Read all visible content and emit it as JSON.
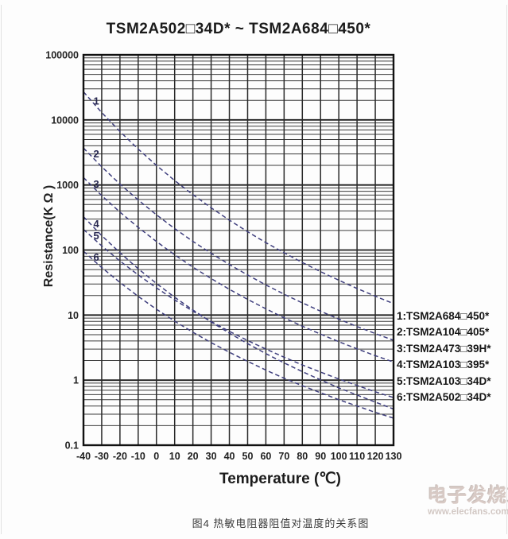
{
  "title": "TSM2A502□34D* ~ TSM2A684□450*",
  "caption": "图4  热敏电阻器阻值对温度的关系图",
  "watermark": {
    "logo": "电子发烧友",
    "url": "www.elecfans.com"
  },
  "legend": {
    "entries": [
      "1:TSM2A684□450*",
      "2:TSM2A104□405*",
      "3:TSM2A473□39H*",
      "4:TSM2A103□395*",
      "5:TSM2A103□34D*",
      "6:TSM2A502□34D*"
    ]
  },
  "colors": {
    "curve": "#3e3e7d",
    "curve_label": "#26264f",
    "grid_major": "#1e1e1e",
    "grid_minor": "#3c3c3c",
    "grid_vertical": "#2a2a2a",
    "border": "#111111",
    "tick_text": "#222222",
    "background": "#fdfdfd"
  },
  "chart_data": {
    "type": "line",
    "title": "TSM2A502□34D* ~ TSM2A684□450*",
    "xlabel": "Temperature (℃)",
    "ylabel": "Resistance(K Ω )",
    "xlim": [
      -40,
      130
    ],
    "ylim": [
      0.1,
      100000
    ],
    "y_scale": "log",
    "grid": true,
    "legend_position": "right-outside",
    "x_ticks": [
      -40,
      -30,
      -20,
      -10,
      0,
      10,
      20,
      30,
      40,
      50,
      60,
      70,
      80,
      90,
      100,
      110,
      120,
      130
    ],
    "y_ticks": [
      "100000",
      "10000",
      "1000",
      "100",
      "10",
      "1",
      "0.1"
    ],
    "series": [
      {
        "label": "1",
        "name": "TSM2A684□450*",
        "label_anchor": [
          -33,
          19600
        ],
        "points": [
          [
            -40,
            27000
          ],
          [
            -30,
            13000
          ],
          [
            -20,
            6630
          ],
          [
            -10,
            3560
          ],
          [
            0,
            2000
          ],
          [
            10,
            1170
          ],
          [
            20,
            711
          ],
          [
            30,
            445
          ],
          [
            40,
            288
          ],
          [
            50,
            191
          ],
          [
            60,
            130
          ],
          [
            70,
            90.5
          ],
          [
            80,
            64.3
          ],
          [
            90,
            46.5
          ],
          [
            100,
            34.3
          ],
          [
            110,
            25.6
          ],
          [
            120,
            19.5
          ],
          [
            130,
            15
          ]
        ]
      },
      {
        "label": "2",
        "name": "TSM2A104□405*",
        "label_anchor": [
          -33,
          3000
        ],
        "points": [
          [
            -40,
            3700
          ],
          [
            -30,
            1910
          ],
          [
            -20,
            1030
          ],
          [
            -10,
            588
          ],
          [
            0,
            348
          ],
          [
            10,
            214
          ],
          [
            20,
            136
          ],
          [
            30,
            89.2
          ],
          [
            40,
            60
          ],
          [
            50,
            41.3
          ],
          [
            60,
            29.1
          ],
          [
            70,
            20.9
          ],
          [
            80,
            15.4
          ],
          [
            90,
            11.5
          ],
          [
            100,
            8.67
          ],
          [
            110,
            6.66
          ],
          [
            120,
            5.19
          ],
          [
            130,
            4.1
          ]
        ]
      },
      {
        "label": "3",
        "name": "TSM2A473□39H*",
        "label_anchor": [
          -33,
          1030
        ],
        "points": [
          [
            -40,
            1300
          ],
          [
            -30,
            688
          ],
          [
            -20,
            383
          ],
          [
            -10,
            223
          ],
          [
            0,
            135
          ],
          [
            10,
            84.5
          ],
          [
            20,
            54.6
          ],
          [
            30,
            36.4
          ],
          [
            40,
            24.9
          ],
          [
            50,
            17.4
          ],
          [
            60,
            12.5
          ],
          [
            70,
            9.08
          ],
          [
            80,
            6.75
          ],
          [
            90,
            5.09
          ],
          [
            100,
            3.9
          ],
          [
            110,
            3.03
          ],
          [
            120,
            2.38
          ],
          [
            130,
            1.9
          ]
        ]
      },
      {
        "label": "4",
        "name": "TSM2A103□395*",
        "label_anchor": [
          -33,
          253
        ],
        "points": [
          [
            -40,
            325
          ],
          [
            -30,
            167
          ],
          [
            -20,
            90.8
          ],
          [
            -10,
            51.6
          ],
          [
            0,
            30.6
          ],
          [
            10,
            18.8
          ],
          [
            20,
            12
          ],
          [
            30,
            7.84
          ],
          [
            40,
            5.28
          ],
          [
            50,
            3.63
          ],
          [
            60,
            2.56
          ],
          [
            70,
            1.84
          ],
          [
            80,
            1.35
          ],
          [
            90,
            1.01
          ],
          [
            100,
            0.76
          ],
          [
            110,
            0.59
          ],
          [
            120,
            0.46
          ],
          [
            130,
            0.36
          ]
        ]
      },
      {
        "label": "5",
        "name": "TSM2A103□34D*",
        "label_anchor": [
          -33,
          166
        ],
        "points": [
          [
            -40,
            207
          ],
          [
            -30,
            116
          ],
          [
            -20,
            67.9
          ],
          [
            -10,
            41.5
          ],
          [
            0,
            26.2
          ],
          [
            10,
            17.1
          ],
          [
            20,
            11.5
          ],
          [
            30,
            7.97
          ],
          [
            40,
            5.63
          ],
          [
            50,
            4.07
          ],
          [
            60,
            3
          ],
          [
            70,
            2.25
          ],
          [
            80,
            1.71
          ],
          [
            90,
            1.33
          ],
          [
            100,
            1.04
          ],
          [
            110,
            0.83
          ],
          [
            120,
            0.66
          ],
          [
            130,
            0.54
          ]
        ]
      },
      {
        "label": "6",
        "name": "TSM2A502□34D*",
        "label_anchor": [
          -33,
          78
        ],
        "points": [
          [
            -40,
            96
          ],
          [
            -30,
            53.9
          ],
          [
            -20,
            31.7
          ],
          [
            -10,
            19.4
          ],
          [
            0,
            12.3
          ],
          [
            10,
            8.07
          ],
          [
            20,
            5.45
          ],
          [
            30,
            3.77
          ],
          [
            40,
            2.68
          ],
          [
            50,
            1.94
          ],
          [
            60,
            1.43
          ],
          [
            70,
            1.07
          ],
          [
            80,
            0.82
          ],
          [
            90,
            0.64
          ],
          [
            100,
            0.5
          ],
          [
            110,
            0.4
          ],
          [
            120,
            0.32
          ],
          [
            130,
            0.26
          ]
        ]
      }
    ]
  }
}
